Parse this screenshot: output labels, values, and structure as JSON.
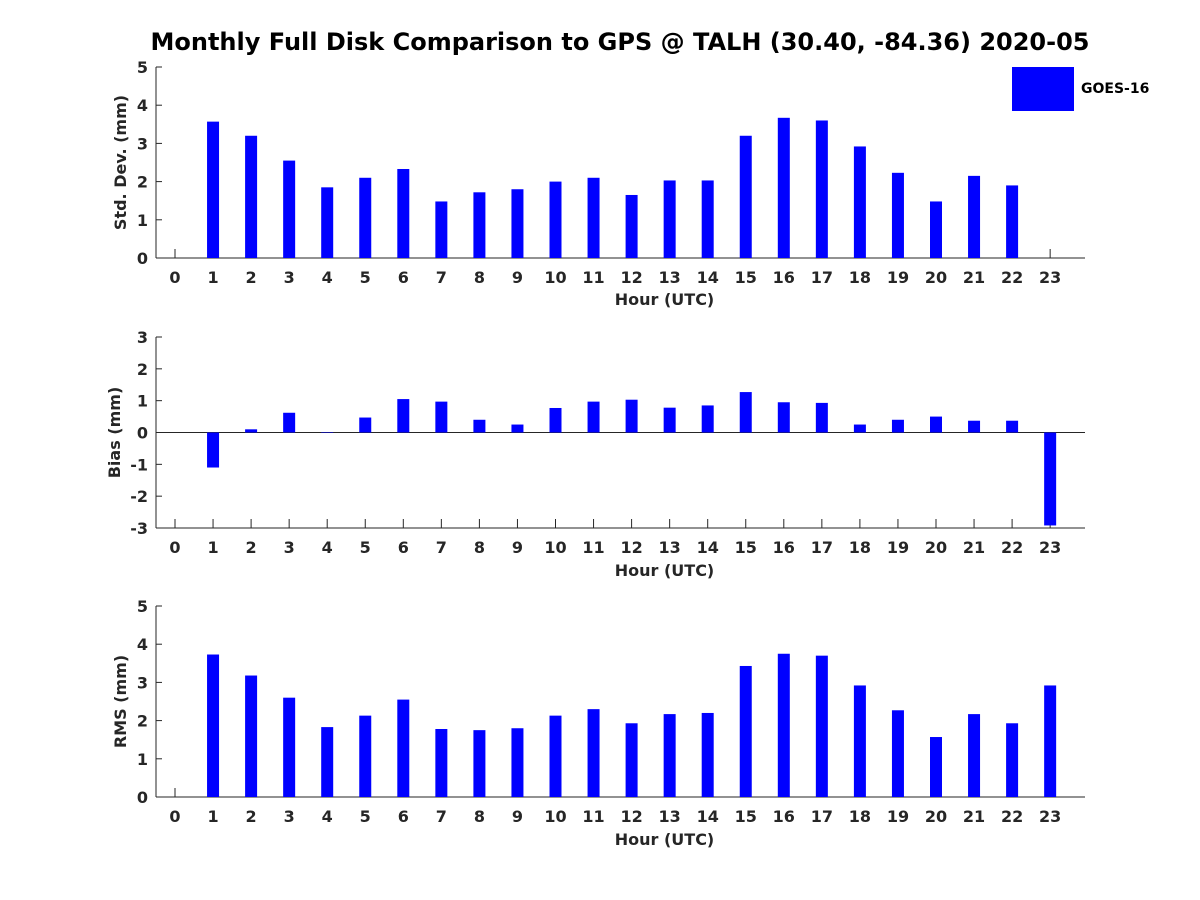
{
  "title": "Monthly Full Disk Comparison to GPS @ TALH (30.40, -84.36) 2020-05",
  "legend": {
    "label": "GOES-16",
    "color": "#0000ff"
  },
  "chart_data": [
    {
      "type": "bar",
      "name": "std-dev",
      "xlabel": "Hour (UTC)",
      "ylabel": "Std. Dev. (mm)",
      "ylim": [
        0,
        5
      ],
      "yticks": [
        0,
        1,
        2,
        3,
        4,
        5
      ],
      "categories": [
        "0",
        "1",
        "2",
        "3",
        "4",
        "5",
        "6",
        "7",
        "8",
        "9",
        "10",
        "11",
        "12",
        "13",
        "14",
        "15",
        "16",
        "17",
        "18",
        "19",
        "20",
        "21",
        "22",
        "23"
      ],
      "series": [
        {
          "name": "GOES-16",
          "color": "#0000ff",
          "values": [
            null,
            3.57,
            3.2,
            2.55,
            1.85,
            2.1,
            2.33,
            1.48,
            1.72,
            1.8,
            2.0,
            2.1,
            1.65,
            2.03,
            2.03,
            3.2,
            3.67,
            3.6,
            2.92,
            2.23,
            1.48,
            2.15,
            1.9,
            null
          ]
        }
      ]
    },
    {
      "type": "bar",
      "name": "bias",
      "xlabel": "Hour (UTC)",
      "ylabel": "Bias (mm)",
      "ylim": [
        -3,
        3
      ],
      "yticks": [
        -3,
        -2,
        -1,
        0,
        1,
        2,
        3
      ],
      "categories": [
        "0",
        "1",
        "2",
        "3",
        "4",
        "5",
        "6",
        "7",
        "8",
        "9",
        "10",
        "11",
        "12",
        "13",
        "14",
        "15",
        "16",
        "17",
        "18",
        "19",
        "20",
        "21",
        "22",
        "23"
      ],
      "series": [
        {
          "name": "GOES-16",
          "color": "#0000ff",
          "values": [
            null,
            -1.1,
            0.1,
            0.62,
            0.0,
            0.47,
            1.05,
            0.97,
            0.4,
            0.25,
            0.77,
            0.97,
            1.03,
            0.78,
            0.85,
            1.27,
            0.95,
            0.93,
            0.25,
            0.4,
            0.5,
            0.37,
            0.37,
            -2.92
          ]
        }
      ]
    },
    {
      "type": "bar",
      "name": "rms",
      "xlabel": "Hour (UTC)",
      "ylabel": "RMS (mm)",
      "ylim": [
        0,
        5
      ],
      "yticks": [
        0,
        1,
        2,
        3,
        4,
        5
      ],
      "categories": [
        "0",
        "1",
        "2",
        "3",
        "4",
        "5",
        "6",
        "7",
        "8",
        "9",
        "10",
        "11",
        "12",
        "13",
        "14",
        "15",
        "16",
        "17",
        "18",
        "19",
        "20",
        "21",
        "22",
        "23"
      ],
      "series": [
        {
          "name": "GOES-16",
          "color": "#0000ff",
          "values": [
            null,
            3.73,
            3.18,
            2.6,
            1.83,
            2.13,
            2.55,
            1.78,
            1.75,
            1.8,
            2.13,
            2.3,
            1.93,
            2.17,
            2.2,
            3.43,
            3.75,
            3.7,
            2.92,
            2.27,
            1.57,
            2.17,
            1.93,
            2.92
          ]
        }
      ]
    }
  ]
}
